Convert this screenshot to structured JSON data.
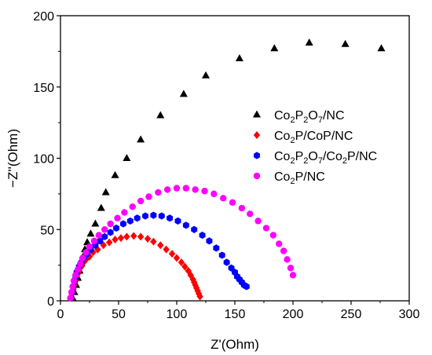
{
  "chart_data": {
    "type": "scatter",
    "title": "",
    "xlabel": "Z'(Ohm)",
    "ylabel": "−Z''(Ohm)",
    "xlim": [
      0,
      300
    ],
    "ylim": [
      0,
      200
    ],
    "xticks": [
      0,
      50,
      100,
      150,
      200,
      250,
      300
    ],
    "yticks": [
      0,
      50,
      100,
      150,
      200
    ],
    "grid": false,
    "legend_position": "center-right",
    "series": [
      {
        "name": "Co2P2O7/NC",
        "legend": {
          "main": "Co",
          "sub1": "2",
          "mid1": "P",
          "sub2": "2",
          "mid2": "O",
          "sub3": "7",
          "tail": "/NC"
        },
        "color": "#000000",
        "marker": "triangle",
        "x": [
          10.5,
          12,
          13.5,
          15,
          16.5,
          18,
          19.5,
          21,
          23,
          26,
          30,
          35,
          39,
          47,
          57,
          69,
          86,
          106,
          125,
          154,
          184,
          214,
          245,
          276
        ],
        "y": [
          2,
          6,
          11,
          16,
          21,
          26,
          31,
          36,
          41,
          47,
          54,
          65,
          76,
          88,
          100,
          113,
          130,
          145,
          158,
          170,
          177,
          181,
          180,
          177
        ]
      },
      {
        "name": "Co2P/CoP/NC",
        "legend": {
          "main": "Co",
          "sub1": "2",
          "mid1": "P/CoP/NC",
          "sub2": "",
          "mid2": "",
          "sub3": "",
          "tail": ""
        },
        "color": "#ff0000",
        "marker": "diamond",
        "x": [
          9.5,
          10,
          11,
          12,
          13,
          14,
          15,
          16,
          18,
          20,
          22,
          25,
          28,
          32,
          37,
          42,
          47,
          52,
          57,
          63,
          69,
          75,
          80,
          86,
          91,
          96,
          100,
          104,
          107,
          110,
          112,
          114,
          115,
          116,
          117,
          118,
          119,
          120
        ],
        "y": [
          2,
          5,
          8,
          11,
          14,
          17,
          19,
          21,
          24,
          27,
          29,
          31,
          34,
          36,
          39,
          41,
          43,
          44,
          45,
          45.5,
          45,
          43.5,
          41.5,
          39,
          36,
          33,
          30,
          27,
          24,
          21,
          18,
          15,
          13,
          11,
          9,
          7,
          5,
          3
        ]
      },
      {
        "name": "Co2P2O7/Co2P/NC",
        "legend": {
          "main": "Co",
          "sub1": "2",
          "mid1": "P",
          "sub2": "2",
          "mid2": "O",
          "sub3": "7",
          "tail": "/Co",
          "sub4": "2",
          "tail2": "P/NC"
        },
        "color": "#0000ff",
        "marker": "hexagon",
        "x": [
          9,
          10,
          11,
          12,
          13,
          14,
          16,
          18,
          20,
          23,
          26,
          30,
          34,
          38,
          43,
          48,
          54,
          60,
          66,
          73,
          80,
          87,
          94,
          101,
          108,
          115,
          122,
          128,
          134,
          139,
          143,
          147,
          150,
          152,
          154,
          156,
          158,
          160
        ],
        "y": [
          2,
          6,
          10,
          14,
          17,
          20,
          24,
          27,
          30,
          33,
          36,
          39,
          42,
          45,
          48,
          51,
          54,
          56,
          58,
          59.5,
          60,
          59.5,
          58,
          56,
          53,
          50,
          46,
          42,
          37,
          32,
          27,
          23,
          20,
          17,
          15,
          13,
          11,
          10
        ]
      },
      {
        "name": "Co2P/NC",
        "legend": {
          "main": "Co",
          "sub1": "2",
          "mid1": "P/NC",
          "sub2": "",
          "mid2": "",
          "sub3": "",
          "tail": ""
        },
        "color": "#ff00ff",
        "marker": "circle",
        "x": [
          8.5,
          9.5,
          10.5,
          11.5,
          13,
          15,
          17,
          19,
          22,
          25,
          29,
          33,
          38,
          43,
          49,
          55,
          62,
          69,
          76,
          84,
          92,
          100,
          108,
          116,
          124,
          132,
          140,
          148,
          156,
          163,
          170,
          177,
          183,
          188,
          192,
          195,
          198,
          200
        ],
        "y": [
          2,
          6,
          10,
          14,
          18,
          22,
          26,
          30,
          34,
          38,
          42,
          46,
          50,
          54,
          58,
          62,
          66,
          70,
          73,
          76,
          78,
          79,
          79,
          78,
          77,
          75,
          72,
          69,
          65,
          61,
          56,
          51,
          46,
          40,
          35,
          29,
          23,
          18
        ]
      }
    ]
  }
}
